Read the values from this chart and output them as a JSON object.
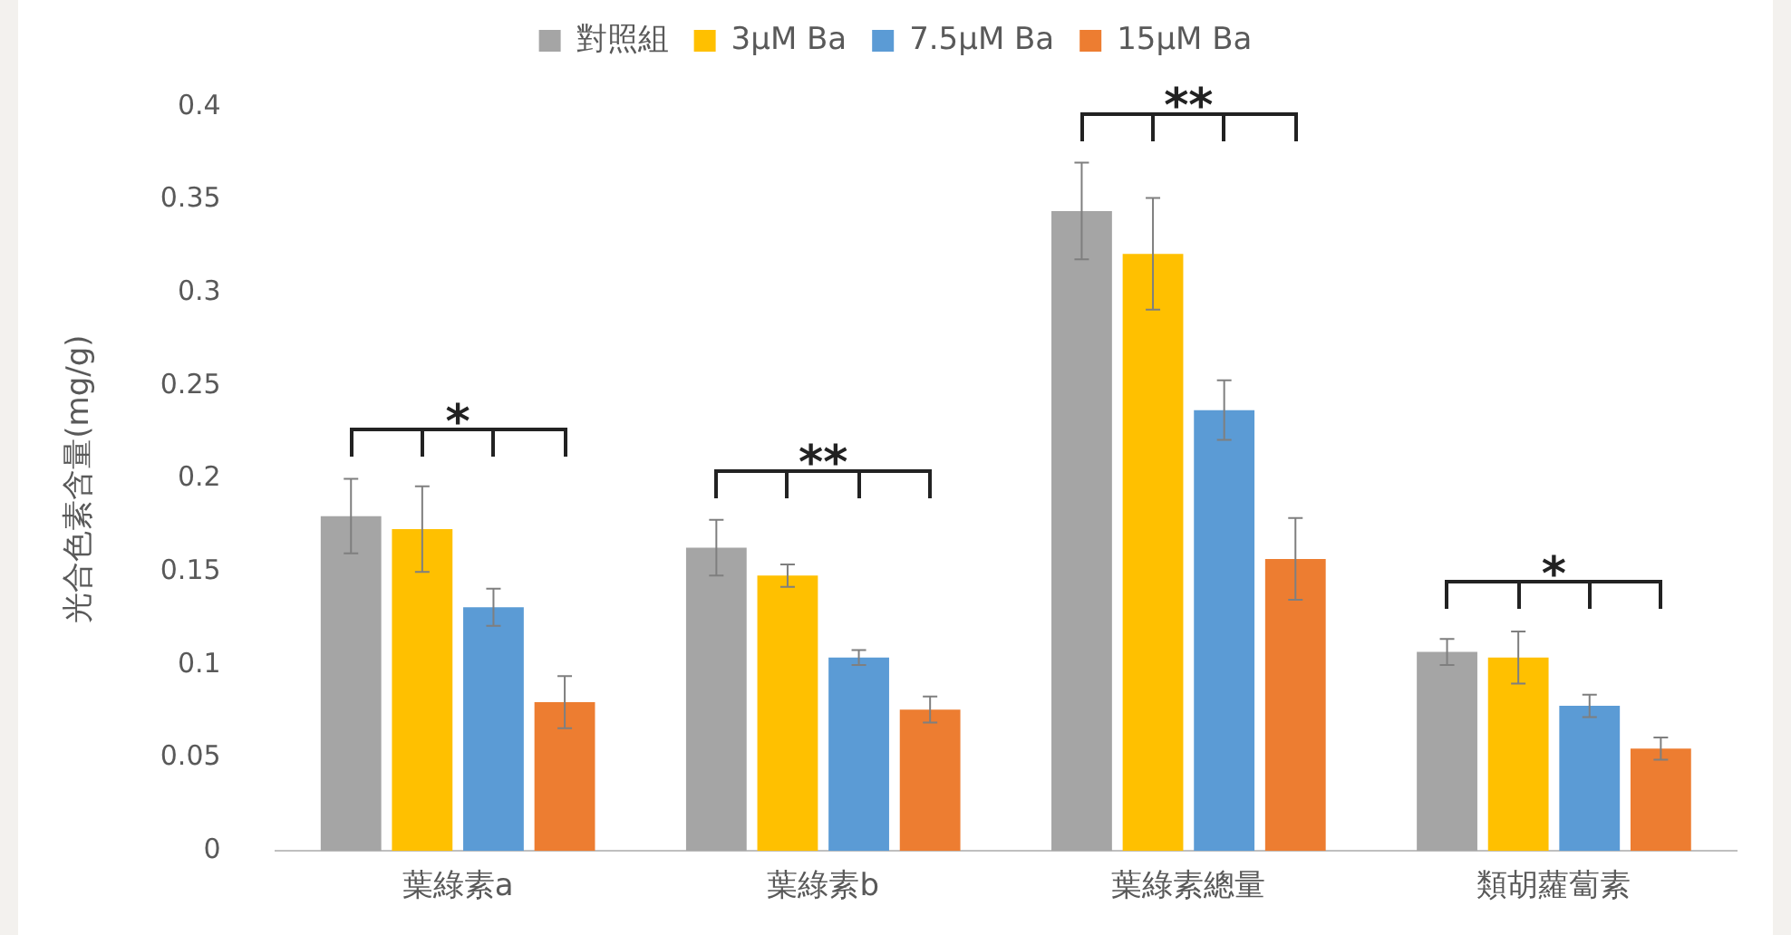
{
  "chart_data": {
    "type": "bar",
    "ylabel": "光合色素含量(mg/g)",
    "categories": [
      "葉綠素a",
      "葉綠素b",
      "葉綠素總量",
      "類胡蘿蔔素"
    ],
    "series": [
      {
        "name": "對照組",
        "color": "#a5a5a5",
        "values": [
          0.18,
          0.163,
          0.344,
          0.107
        ],
        "errors": [
          0.02,
          0.015,
          0.026,
          0.007
        ]
      },
      {
        "name": "3μM Ba",
        "color": "#ffc000",
        "values": [
          0.173,
          0.148,
          0.321,
          0.104
        ],
        "errors": [
          0.023,
          0.006,
          0.03,
          0.014
        ]
      },
      {
        "name": "7.5μM Ba",
        "color": "#5b9bd5",
        "values": [
          0.131,
          0.104,
          0.237,
          0.078
        ],
        "errors": [
          0.01,
          0.004,
          0.016,
          0.006
        ]
      },
      {
        "name": "15μM Ba",
        "color": "#ed7d31",
        "values": [
          0.08,
          0.076,
          0.157,
          0.055
        ],
        "errors": [
          0.014,
          0.007,
          0.022,
          0.006
        ]
      }
    ],
    "ylim": [
      0,
      0.4
    ],
    "yticks": [
      0,
      0.05,
      0.1,
      0.15,
      0.2,
      0.25,
      0.3,
      0.35,
      0.4
    ],
    "grid": false,
    "legend": "top",
    "annotations": [
      "*",
      "**",
      "**",
      "*"
    ]
  }
}
